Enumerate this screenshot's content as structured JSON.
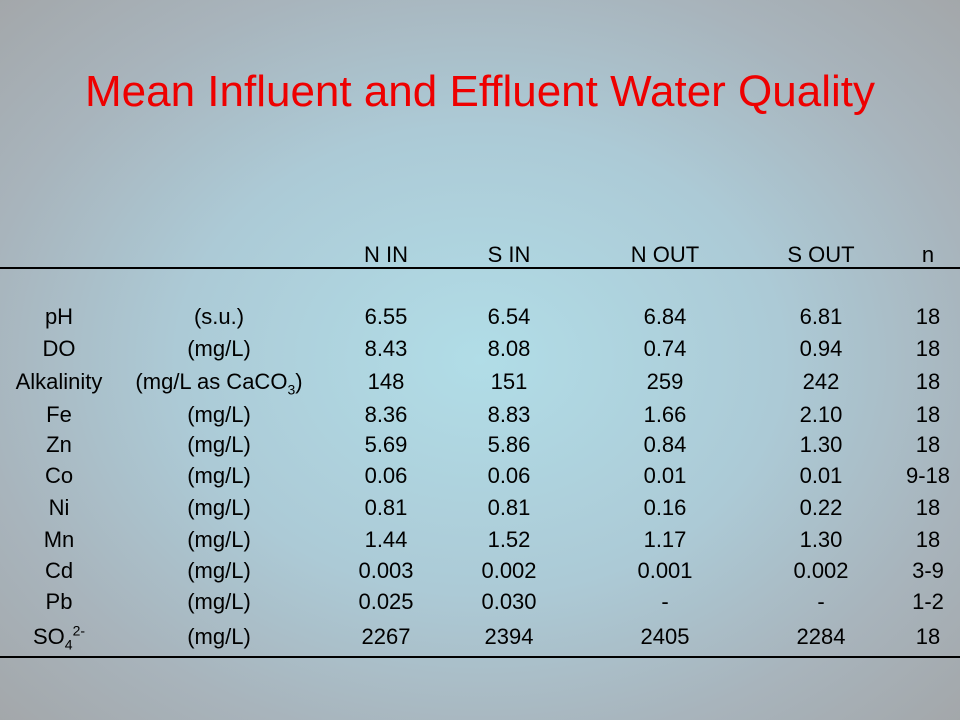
{
  "title": "Mean Influent and Effluent Water Quality",
  "table": {
    "headers": [
      "N IN",
      "S IN",
      "N OUT",
      "S OUT",
      "n"
    ],
    "rows": [
      {
        "param": "pH",
        "unit": "(s.u.)",
        "values": [
          "6.55",
          "6.54",
          "6.84",
          "6.81",
          "18"
        ]
      },
      {
        "param": "DO",
        "unit": "(mg/L)",
        "values": [
          "8.43",
          "8.08",
          "0.74",
          "0.94",
          "18"
        ]
      },
      {
        "param": "Alkalinity",
        "unit": "(mg/L as CaCO",
        "unit_sub": "3",
        "unit_end": ")",
        "values": [
          "148",
          "151",
          "259",
          "242",
          "18"
        ]
      },
      {
        "param": "Fe",
        "unit": "(mg/L)",
        "values": [
          "8.36",
          "8.83",
          "1.66",
          "2.10",
          "18"
        ]
      },
      {
        "param": "Zn",
        "unit": "(mg/L)",
        "values": [
          "5.69",
          "5.86",
          "0.84",
          "1.30",
          "18"
        ]
      },
      {
        "param": "Co",
        "unit": "(mg/L)",
        "values": [
          "0.06",
          "0.06",
          "0.01",
          "0.01",
          "9-18"
        ]
      },
      {
        "param": "Ni",
        "unit": "(mg/L)",
        "values": [
          "0.81",
          "0.81",
          "0.16",
          "0.22",
          "18"
        ]
      },
      {
        "param": "Mn",
        "unit": "(mg/L)",
        "values": [
          "1.44",
          "1.52",
          "1.17",
          "1.30",
          "18"
        ]
      },
      {
        "param": "Cd",
        "unit": "(mg/L)",
        "values": [
          "0.003",
          "0.002",
          "0.001",
          "0.002",
          "3-9"
        ]
      },
      {
        "param": "Pb",
        "unit": "(mg/L)",
        "values": [
          "0.025",
          "0.030",
          "-",
          "-",
          "1-2"
        ]
      },
      {
        "param": "SO",
        "param_sub": "4",
        "param_sup": "2-",
        "unit": "(mg/L)",
        "values": [
          "2267",
          "2394",
          "2405",
          "2284",
          "18"
        ]
      }
    ]
  }
}
